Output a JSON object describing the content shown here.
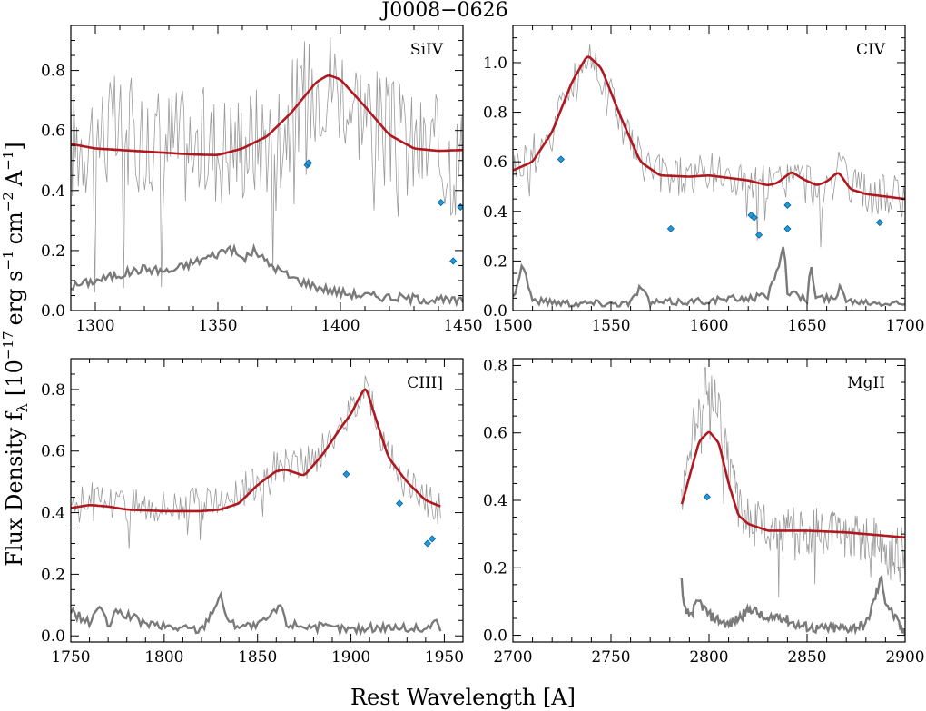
{
  "figure": {
    "title": "J0008−0626",
    "xlabel": "Rest Wavelength [A]",
    "ylabel_main": "Flux Density f",
    "ylabel_sub": "λ",
    "ylabel_units_open": "[10",
    "ylabel_exp1": "−17",
    "ylabel_erg": "erg s",
    "ylabel_exp2": "−1",
    "ylabel_cm": "cm",
    "ylabel_exp3": "−2",
    "ylabel_A": "A",
    "ylabel_exp4": "−1",
    "ylabel_close": "]"
  },
  "colors": {
    "spectrum": "#9a9a9a",
    "model": "#b0171f",
    "error": "#7a7a7a",
    "absorber": "#1e9be0",
    "axes": "#000000"
  },
  "chart_data": [
    {
      "type": "line",
      "label": "SiIV",
      "xlim": [
        1290,
        1450
      ],
      "ylim": [
        0,
        0.95
      ],
      "xticks": [
        1300,
        1350,
        1400,
        1450
      ],
      "yticks": [
        0.0,
        0.2,
        0.4,
        0.6,
        0.8
      ],
      "xtick_labels": [
        "1300",
        "1350",
        "1400",
        "1450"
      ],
      "ytick_labels": [
        "0.0",
        "0.2",
        "0.4",
        "0.6",
        "0.8"
      ],
      "model": {
        "x": [
          1290,
          1300,
          1320,
          1340,
          1350,
          1360,
          1370,
          1380,
          1390,
          1395,
          1400,
          1410,
          1420,
          1430,
          1440,
          1450
        ],
        "y": [
          0.555,
          0.54,
          0.53,
          0.52,
          0.518,
          0.54,
          0.58,
          0.66,
          0.76,
          0.785,
          0.77,
          0.68,
          0.585,
          0.54,
          0.532,
          0.535
        ]
      },
      "spectrum_shape": {
        "x": [
          1290,
          1300,
          1320,
          1340,
          1350,
          1360,
          1370,
          1380,
          1390,
          1395,
          1400,
          1410,
          1420,
          1430,
          1440,
          1450
        ],
        "y": [
          0.55,
          0.6,
          0.58,
          0.55,
          0.55,
          0.56,
          0.58,
          0.65,
          0.76,
          0.78,
          0.75,
          0.67,
          0.58,
          0.54,
          0.52,
          0.5
        ]
      },
      "spectrum_noise": 0.2,
      "error": {
        "x": [
          1290,
          1300,
          1310,
          1320,
          1330,
          1340,
          1350,
          1355,
          1360,
          1365,
          1370,
          1380,
          1390,
          1400,
          1410,
          1420,
          1430,
          1440,
          1450
        ],
        "y": [
          0.08,
          0.1,
          0.12,
          0.14,
          0.13,
          0.16,
          0.19,
          0.21,
          0.17,
          0.2,
          0.16,
          0.11,
          0.08,
          0.06,
          0.05,
          0.045,
          0.04,
          0.035,
          0.03
        ]
      },
      "absorbers": [
        {
          "x": 1386.5,
          "y": 0.485
        },
        {
          "x": 1387.0,
          "y": 0.492
        },
        {
          "x": 1441.0,
          "y": 0.36
        },
        {
          "x": 1449.0,
          "y": 0.345
        },
        {
          "x": 1446.0,
          "y": 0.165
        }
      ]
    },
    {
      "type": "line",
      "label": "CIV",
      "xlim": [
        1500,
        1700
      ],
      "ylim": [
        0,
        1.15
      ],
      "xticks": [
        1500,
        1550,
        1600,
        1650,
        1700
      ],
      "yticks": [
        0.0,
        0.2,
        0.4,
        0.6,
        0.8,
        1.0
      ],
      "xtick_labels": [
        "1500",
        "1550",
        "1600",
        "1650",
        "1700"
      ],
      "ytick_labels": [
        "0.0",
        "0.2",
        "0.4",
        "0.6",
        "0.8",
        "1.0"
      ],
      "model": {
        "x": [
          1500,
          1510,
          1520,
          1530,
          1538,
          1545,
          1555,
          1565,
          1575,
          1590,
          1600,
          1620,
          1630,
          1635,
          1642,
          1648,
          1655,
          1660,
          1666,
          1672,
          1680,
          1700
        ],
        "y": [
          0.565,
          0.6,
          0.72,
          0.92,
          1.03,
          0.98,
          0.78,
          0.6,
          0.545,
          0.54,
          0.545,
          0.525,
          0.505,
          0.515,
          0.56,
          0.53,
          0.505,
          0.52,
          0.56,
          0.49,
          0.47,
          0.45
        ]
      },
      "spectrum_shape": {
        "x": [
          1500,
          1510,
          1520,
          1530,
          1538,
          1545,
          1555,
          1565,
          1575,
          1590,
          1600,
          1620,
          1630,
          1635,
          1642,
          1648,
          1655,
          1660,
          1666,
          1672,
          1680,
          1700
        ],
        "y": [
          0.58,
          0.62,
          0.74,
          0.92,
          1.02,
          0.98,
          0.77,
          0.6,
          0.55,
          0.54,
          0.55,
          0.52,
          0.5,
          0.51,
          0.55,
          0.52,
          0.5,
          0.51,
          0.56,
          0.49,
          0.47,
          0.46
        ]
      },
      "spectrum_noise": 0.09,
      "error": {
        "x": [
          1500,
          1505,
          1510,
          1530,
          1560,
          1565,
          1570,
          1600,
          1620,
          1630,
          1636,
          1638,
          1640,
          1645,
          1650,
          1652,
          1654,
          1660,
          1665,
          1667,
          1670,
          1700
        ],
        "y": [
          0.05,
          0.19,
          0.04,
          0.03,
          0.03,
          0.1,
          0.03,
          0.04,
          0.05,
          0.06,
          0.2,
          0.28,
          0.08,
          0.06,
          0.04,
          0.2,
          0.05,
          0.05,
          0.04,
          0.12,
          0.04,
          0.03
        ]
      },
      "absorbers": [
        {
          "x": 1524.5,
          "y": 0.61
        },
        {
          "x": 1580.5,
          "y": 0.33
        },
        {
          "x": 1621.5,
          "y": 0.385
        },
        {
          "x": 1623.0,
          "y": 0.375
        },
        {
          "x": 1625.5,
          "y": 0.305
        },
        {
          "x": 1640.0,
          "y": 0.425
        },
        {
          "x": 1640.0,
          "y": 0.33
        },
        {
          "x": 1687.0,
          "y": 0.355
        }
      ]
    },
    {
      "type": "line",
      "label": "CIII]",
      "xlim": [
        1750,
        1960
      ],
      "ylim": [
        -0.02,
        0.9
      ],
      "xticks": [
        1750,
        1800,
        1850,
        1900,
        1950
      ],
      "yticks": [
        0.0,
        0.2,
        0.4,
        0.6,
        0.8
      ],
      "xtick_labels": [
        "1750",
        "1800",
        "1850",
        "1900",
        "1950"
      ],
      "ytick_labels": [
        "0.0",
        "0.2",
        "0.4",
        "0.6",
        "0.8"
      ],
      "model": {
        "x": [
          1750,
          1760,
          1770,
          1780,
          1800,
          1820,
          1830,
          1840,
          1850,
          1860,
          1865,
          1875,
          1885,
          1895,
          1900,
          1905,
          1908,
          1912,
          1920,
          1930,
          1940,
          1948
        ],
        "y": [
          0.415,
          0.425,
          0.42,
          0.41,
          0.405,
          0.405,
          0.41,
          0.43,
          0.49,
          0.535,
          0.54,
          0.52,
          0.59,
          0.68,
          0.72,
          0.78,
          0.81,
          0.73,
          0.58,
          0.5,
          0.44,
          0.42
        ]
      },
      "spectrum_shape": {
        "x": [
          1750,
          1760,
          1770,
          1780,
          1800,
          1820,
          1830,
          1840,
          1850,
          1860,
          1865,
          1875,
          1885,
          1895,
          1900,
          1905,
          1908,
          1912,
          1920,
          1930,
          1940,
          1948
        ],
        "y": [
          0.44,
          0.45,
          0.44,
          0.43,
          0.43,
          0.43,
          0.44,
          0.46,
          0.5,
          0.55,
          0.56,
          0.55,
          0.6,
          0.68,
          0.73,
          0.8,
          0.83,
          0.74,
          0.58,
          0.49,
          0.44,
          0.42
        ]
      },
      "spectrum_noise": 0.06,
      "error": {
        "x": [
          1750,
          1760,
          1765,
          1770,
          1775,
          1790,
          1800,
          1820,
          1830,
          1835,
          1850,
          1860,
          1862,
          1865,
          1880,
          1900,
          1920,
          1940,
          1945,
          1948
        ],
        "y": [
          0.08,
          0.04,
          0.1,
          0.03,
          0.08,
          0.04,
          0.03,
          0.02,
          0.13,
          0.04,
          0.03,
          0.08,
          0.11,
          0.04,
          0.03,
          0.02,
          0.03,
          0.02,
          0.05,
          0.02
        ]
      },
      "absorbers": [
        {
          "x": 1897.5,
          "y": 0.525
        },
        {
          "x": 1926.0,
          "y": 0.43
        },
        {
          "x": 1941.0,
          "y": 0.3
        },
        {
          "x": 1943.5,
          "y": 0.315
        }
      ]
    },
    {
      "type": "line",
      "label": "MgII",
      "xlim": [
        2700,
        2900
      ],
      "ylim": [
        -0.02,
        0.82
      ],
      "xticks": [
        2700,
        2750,
        2800,
        2850,
        2900
      ],
      "yticks": [
        0.0,
        0.2,
        0.4,
        0.6,
        0.8
      ],
      "xtick_labels": [
        "2700",
        "2750",
        "2800",
        "2850",
        "2900"
      ],
      "ytick_labels": [
        "0.0",
        "0.2",
        "0.4",
        "0.6",
        "0.8"
      ],
      "model": {
        "x": [
          2786,
          2790,
          2795,
          2800,
          2805,
          2810,
          2815,
          2820,
          2830,
          2850,
          2870,
          2890,
          2900
        ],
        "y": [
          0.385,
          0.47,
          0.575,
          0.605,
          0.57,
          0.45,
          0.355,
          0.33,
          0.31,
          0.31,
          0.305,
          0.295,
          0.29
        ]
      },
      "spectrum_shape": {
        "x": [
          2786,
          2790,
          2795,
          2800,
          2805,
          2810,
          2815,
          2820,
          2830,
          2850,
          2870,
          2885,
          2890,
          2900
        ],
        "y": [
          0.42,
          0.55,
          0.7,
          0.75,
          0.66,
          0.5,
          0.38,
          0.34,
          0.32,
          0.31,
          0.3,
          0.28,
          0.22,
          0.27
        ]
      },
      "spectrum_noise": 0.07,
      "error": {
        "x": [
          2786,
          2787,
          2790,
          2795,
          2800,
          2810,
          2822,
          2830,
          2835,
          2845,
          2855,
          2870,
          2880,
          2888,
          2890,
          2900
        ],
        "y": [
          0.16,
          0.08,
          0.06,
          0.1,
          0.06,
          0.03,
          0.08,
          0.04,
          0.06,
          0.03,
          0.02,
          0.02,
          0.03,
          0.17,
          0.1,
          0.0
        ]
      },
      "absorbers": [
        {
          "x": 2799.0,
          "y": 0.41
        }
      ]
    }
  ]
}
